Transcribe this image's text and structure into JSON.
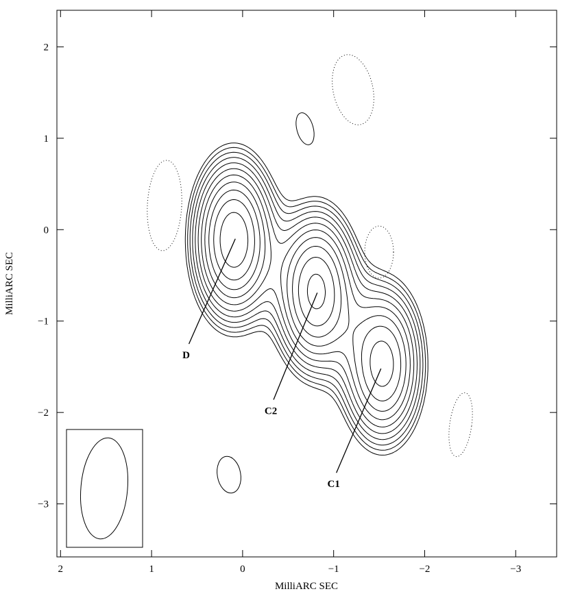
{
  "chart_data": {
    "type": "contour",
    "xlabel": "MilliARC SEC",
    "ylabel": "MilliARC SEC",
    "xlim": [
      2.04,
      -3.45
    ],
    "ylim": [
      -3.58,
      2.4
    ],
    "xticks": [
      2,
      1,
      0,
      {
        "value": -1,
        "label": "−1"
      },
      {
        "value": -2,
        "label": "−2"
      },
      {
        "value": -3,
        "label": "−3"
      }
    ],
    "yticks": [
      2,
      1,
      0,
      {
        "value": -1,
        "label": "−1"
      },
      {
        "value": -2,
        "label": "−2"
      },
      {
        "value": -3,
        "label": "−3"
      }
    ],
    "annotations": [
      {
        "text": "D",
        "x": 0.08,
        "y": -0.1,
        "text_x": 0.62,
        "text_y": -1.37
      },
      {
        "text": "C2",
        "x": -0.82,
        "y": -0.69,
        "text_x": -0.31,
        "text_y": -1.98
      },
      {
        "text": "C1",
        "x": -1.52,
        "y": -1.52,
        "text_x": -1.0,
        "text_y": -2.78
      }
    ]
  }
}
